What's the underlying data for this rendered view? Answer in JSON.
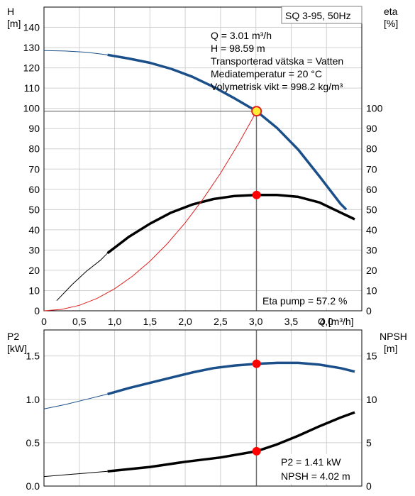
{
  "chart_data": [
    {
      "type": "line",
      "title": "SQ 3-95, 50Hz",
      "xlabel": "Q [m³/h]",
      "xlim": [
        0,
        4.5
      ],
      "x_ticks": [
        "0",
        "0,5",
        "1,0",
        "1,5",
        "2,0",
        "2,5",
        "3,0",
        "3,5",
        "4,0"
      ],
      "left_axis": {
        "label_line1": "H",
        "label_line2": "[m]",
        "ylim": [
          0,
          150
        ],
        "ticks": [
          "0",
          "10",
          "20",
          "30",
          "40",
          "50",
          "60",
          "70",
          "80",
          "90",
          "100",
          "110",
          "120",
          "130",
          "140"
        ]
      },
      "right_axis": {
        "label_line1": "eta",
        "label_line2": "[%]",
        "ylim": [
          0,
          150
        ],
        "ticks": [
          "0",
          "10",
          "20",
          "30",
          "40",
          "50",
          "60",
          "70",
          "80",
          "90",
          "100"
        ]
      },
      "grid": true,
      "series": [
        {
          "axis": "left",
          "color": "#1a4f8a",
          "thin": [
            [
              0.0,
              128.5
            ],
            [
              0.3,
              128.3
            ],
            [
              0.6,
              127.7
            ],
            [
              0.9,
              126.4
            ]
          ],
          "thick": [
            [
              0.9,
              126.4
            ],
            [
              1.2,
              124.6
            ],
            [
              1.5,
              122.5
            ],
            [
              1.8,
              119.5
            ],
            [
              2.1,
              115.6
            ],
            [
              2.4,
              110.6
            ],
            [
              2.7,
              104.9
            ],
            [
              3.01,
              98.59
            ],
            [
              3.3,
              90.3
            ],
            [
              3.6,
              79.6
            ],
            [
              3.9,
              66.4
            ],
            [
              4.2,
              52.8
            ],
            [
              4.28,
              50.0
            ]
          ]
        },
        {
          "axis": "right",
          "color": "#000000",
          "thin": [
            [
              0.18,
              5.0
            ],
            [
              0.4,
              13.0
            ],
            [
              0.6,
              19.5
            ],
            [
              0.8,
              25.0
            ],
            [
              0.9,
              28.5
            ]
          ],
          "thick": [
            [
              0.9,
              28.5
            ],
            [
              1.2,
              36.5
            ],
            [
              1.5,
              43.0
            ],
            [
              1.8,
              48.5
            ],
            [
              2.1,
              52.5
            ],
            [
              2.4,
              55.2
            ],
            [
              2.7,
              56.7
            ],
            [
              3.01,
              57.2
            ],
            [
              3.3,
              57.2
            ],
            [
              3.6,
              56.3
            ],
            [
              3.9,
              53.5
            ],
            [
              4.2,
              48.5
            ],
            [
              4.4,
              45.2
            ]
          ]
        },
        {
          "axis": "left",
          "color": "#e02020",
          "thin": [
            [
              0.0,
              0.0
            ],
            [
              0.25,
              0.7
            ],
            [
              0.5,
              2.7
            ],
            [
              0.75,
              6.1
            ],
            [
              1.0,
              10.9
            ],
            [
              1.25,
              17.0
            ],
            [
              1.5,
              24.5
            ],
            [
              1.75,
              33.3
            ],
            [
              2.0,
              43.5
            ],
            [
              2.25,
              55.1
            ],
            [
              2.5,
              68.0
            ],
            [
              2.75,
              82.3
            ],
            [
              3.01,
              98.59
            ]
          ]
        }
      ],
      "operating_point": {
        "q": 3.01,
        "h": 98.59,
        "eta": 57.2
      },
      "info_lines": [
        "Q = 3.01 m³/h",
        "H = 98.59 m",
        "Transporterad vätska = Vatten",
        "Mediatemperatur = 20 °C",
        "Volymetrisk vikt = 998.2 kg/m³"
      ],
      "footer_label": "Eta pump = 57.2 %"
    },
    {
      "type": "line",
      "xlim": [
        0,
        4.5
      ],
      "left_axis": {
        "label_line1": "P2",
        "label_line2": "[kW]",
        "ylim": [
          0,
          1.8
        ],
        "ticks": [
          "0.0",
          "0.5",
          "1.0",
          "1.5"
        ],
        "tick_values": [
          0,
          0.5,
          1.0,
          1.5
        ]
      },
      "right_axis": {
        "label_line1": "NPSH",
        "label_line2": "[m]",
        "ylim": [
          0,
          18
        ],
        "ticks": [
          "0",
          "5",
          "10",
          "15"
        ],
        "tick_values": [
          0,
          5,
          10,
          15
        ]
      },
      "grid": true,
      "series": [
        {
          "axis": "left",
          "color": "#1a4f8a",
          "thin": [
            [
              0.0,
              0.89
            ],
            [
              0.3,
              0.94
            ],
            [
              0.6,
              1.0
            ],
            [
              0.9,
              1.06
            ]
          ],
          "thick": [
            [
              0.9,
              1.06
            ],
            [
              1.2,
              1.13
            ],
            [
              1.5,
              1.19
            ],
            [
              1.8,
              1.25
            ],
            [
              2.1,
              1.31
            ],
            [
              2.4,
              1.36
            ],
            [
              2.7,
              1.39
            ],
            [
              3.01,
              1.41
            ],
            [
              3.3,
              1.42
            ],
            [
              3.6,
              1.42
            ],
            [
              3.9,
              1.4
            ],
            [
              4.2,
              1.36
            ],
            [
              4.4,
              1.32
            ]
          ]
        },
        {
          "axis": "right",
          "color": "#000000",
          "thin": [
            [
              0.0,
              1.1
            ],
            [
              0.3,
              1.3
            ],
            [
              0.6,
              1.5
            ],
            [
              0.9,
              1.7
            ]
          ],
          "thick": [
            [
              0.9,
              1.7
            ],
            [
              1.5,
              2.2
            ],
            [
              2.0,
              2.8
            ],
            [
              2.5,
              3.3
            ],
            [
              3.01,
              4.02
            ],
            [
              3.3,
              4.8
            ],
            [
              3.6,
              5.8
            ],
            [
              3.9,
              6.9
            ],
            [
              4.2,
              7.9
            ],
            [
              4.4,
              8.5
            ]
          ]
        }
      ],
      "operating_point": {
        "q": 3.01,
        "p2": 1.41,
        "npsh": 4.02
      },
      "info_lines": [
        "P2 = 1.41 kW",
        "NPSH = 4.02 m"
      ]
    }
  ],
  "colors": {
    "h_curve": "#1a4f8a",
    "eta_curve": "#000000",
    "system_curve": "#e02020",
    "marker": "#ff0000",
    "grid": "#d0d0d0"
  }
}
